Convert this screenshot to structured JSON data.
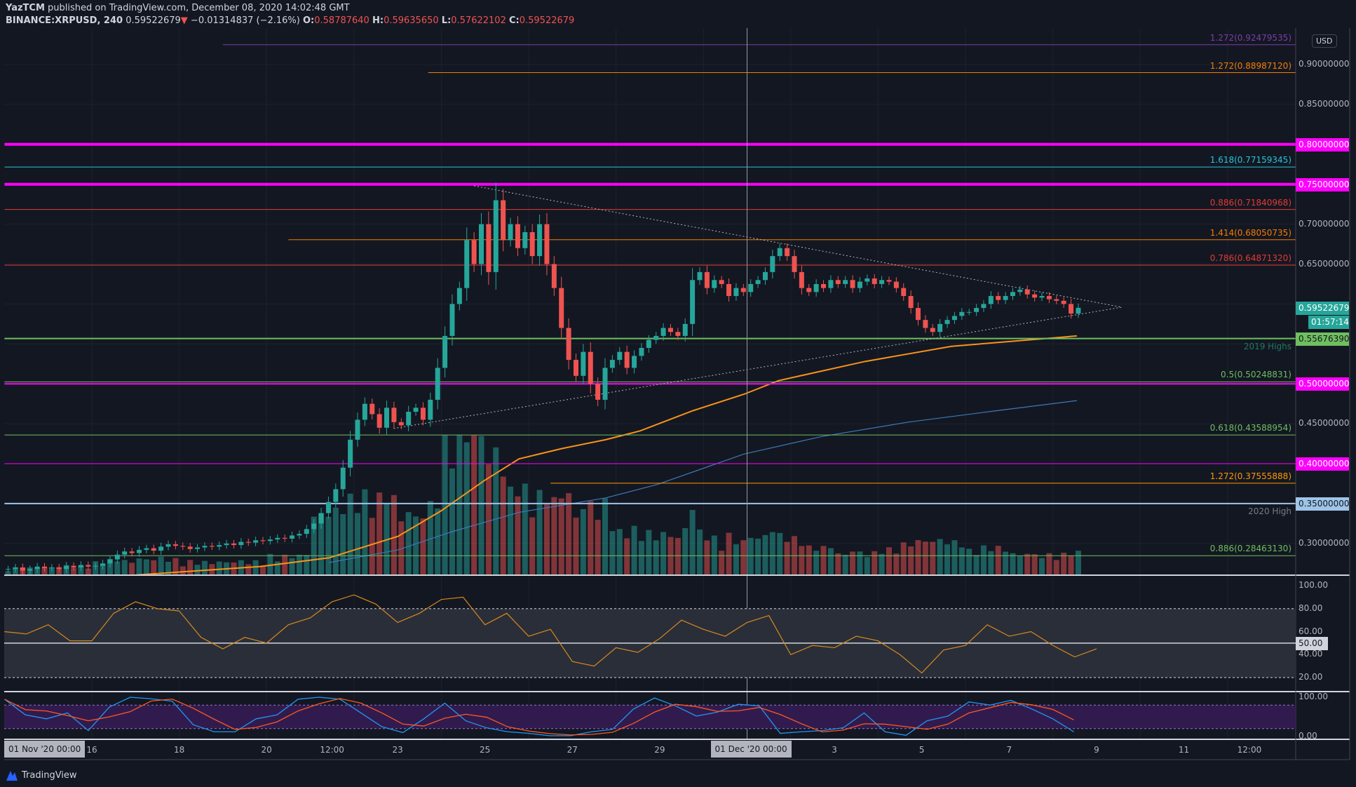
{
  "header": {
    "author": "YazTCM",
    "published": "published on TradingView.com, December 08, 2020 14:02:48 GMT",
    "symbol": "BINANCE:XRPUSD, 240",
    "last": "0.59522679",
    "change": "−0.01314837 (−2.16%)",
    "o_label": "O:",
    "o": "0.58787640",
    "h_label": "H:",
    "h": "0.59635650",
    "l_label": "L:",
    "l": "0.57622102",
    "c_label": "C:",
    "c": "0.59522679"
  },
  "currency": "USD",
  "colors": {
    "up": "#26a69a",
    "down": "#ef5350",
    "magenta": "#ff00ff",
    "background": "#131722"
  },
  "price_axis": {
    "ticks": [
      "0.90000000",
      "0.85000000",
      "0.70000000",
      "0.65000000",
      "0.45000000",
      "0.30000000"
    ],
    "tick_values": [
      0.9,
      0.85,
      0.7,
      0.65,
      0.45,
      0.3
    ],
    "boxes": [
      {
        "value": 0.8,
        "text": "0.80000000",
        "bg": "#ff00ff",
        "fg": "#ffffff"
      },
      {
        "value": 0.75,
        "text": "0.75000000",
        "bg": "#ff00ff",
        "fg": "#ffffff"
      },
      {
        "value": 0.59522679,
        "text": "0.59522679",
        "bg": "#26a69a",
        "fg": "#ffffff"
      },
      {
        "value": 0.5567639,
        "text": "0.55676390",
        "bg": "#6fbf5f",
        "fg": "#131722"
      },
      {
        "value": 0.5,
        "text": "0.50000000",
        "bg": "#ff00ff",
        "fg": "#ffffff"
      },
      {
        "value": 0.4,
        "text": "0.40000000",
        "bg": "#ff00ff",
        "fg": "#ffffff"
      },
      {
        "value": 0.35,
        "text": "0.35000000",
        "bg": "#9ec5e8",
        "fg": "#131722"
      }
    ],
    "countdown": "01:57:14"
  },
  "levels": [
    {
      "value": 0.92479535,
      "label": "1.272(0.92479535)",
      "color": "#7b3fa8",
      "from_day": 19.0,
      "width": 1
    },
    {
      "value": 0.8898712,
      "label": "1.272(0.88987120)",
      "color": "#f57c00",
      "from_day": 23.7,
      "width": 1
    },
    {
      "value": 0.8,
      "label": "",
      "color": "#ff00ff",
      "from_day": 14,
      "width": 4
    },
    {
      "value": 0.77159345,
      "label": "1.618(0.77159345)",
      "color": "#26c6da",
      "from_day": 14,
      "width": 1
    },
    {
      "value": 0.75,
      "label": "",
      "color": "#ff00ff",
      "from_day": 14,
      "width": 4
    },
    {
      "value": 0.71840968,
      "label": "0.886(0.71840968)",
      "color": "#e53935",
      "from_day": 14,
      "width": 1
    },
    {
      "value": 0.68050735,
      "label": "1.414(0.68050735)",
      "color": "#f57c00",
      "from_day": 20.5,
      "width": 1
    },
    {
      "value": 0.6487132,
      "label": "0.786(0.64871320)",
      "color": "#e53935",
      "from_day": 14,
      "width": 1
    },
    {
      "value": 0.5567639,
      "label": "2019 Highs",
      "color": "#6fbf5f",
      "label_color": "#1e7a5e",
      "from_day": 14,
      "width": 2
    },
    {
      "value": 0.50248831,
      "label": "0.5(0.50248831)",
      "color": "#6fbf5f",
      "from_day": 14,
      "width": 1
    },
    {
      "value": 0.5,
      "label": "",
      "color": "#ff00ff",
      "from_day": 14,
      "width": 2
    },
    {
      "value": 0.43588954,
      "label": "0.618(0.43588954)",
      "color": "#6fbf5f",
      "from_day": 14,
      "width": 1
    },
    {
      "value": 0.4,
      "label": "",
      "color": "#ff00ff",
      "from_day": 14,
      "width": 1
    },
    {
      "value": 0.37555888,
      "label": "1.272(0.37555888)",
      "color": "#ff9800",
      "from_day": 26.5,
      "width": 1
    },
    {
      "value": 0.35,
      "label": "2020 High",
      "color": "#9ec5e8",
      "label_color": "#787b86",
      "from_day": 14,
      "width": 2
    },
    {
      "value": 0.2846313,
      "label": "0.886(0.28463130)",
      "color": "#6fbf5f",
      "from_day": 14,
      "width": 1
    }
  ],
  "time_axis": {
    "labels": [
      {
        "day": 16,
        "text": "16"
      },
      {
        "day": 18,
        "text": "18"
      },
      {
        "day": 20,
        "text": "20"
      },
      {
        "day": 21.5,
        "text": "12:00"
      },
      {
        "day": 23,
        "text": "23"
      },
      {
        "day": 25,
        "text": "25"
      },
      {
        "day": 27,
        "text": "27"
      },
      {
        "day": 29,
        "text": "29"
      },
      {
        "day": 33,
        "text": "3"
      },
      {
        "day": 35,
        "text": "5"
      },
      {
        "day": 37,
        "text": "7"
      },
      {
        "day": 39,
        "text": "9"
      },
      {
        "day": 41,
        "text": "11"
      },
      {
        "day": 42.5,
        "text": "12:00"
      }
    ],
    "left_box": "01 Nov '20  00:00",
    "crosshair_box": "01 Dec '20  00:00"
  },
  "chart_data": {
    "type": "candlestick",
    "interval": "240",
    "start": "Nov 14 2020",
    "closes": [
      0.268,
      0.27,
      0.266,
      0.268,
      0.271,
      0.269,
      0.27,
      0.268,
      0.272,
      0.27,
      0.273,
      0.271,
      0.272,
      0.275,
      0.28,
      0.286,
      0.29,
      0.288,
      0.292,
      0.294,
      0.291,
      0.296,
      0.299,
      0.297,
      0.296,
      0.293,
      0.295,
      0.297,
      0.296,
      0.298,
      0.3,
      0.298,
      0.302,
      0.301,
      0.304,
      0.303,
      0.305,
      0.307,
      0.306,
      0.31,
      0.312,
      0.318,
      0.325,
      0.338,
      0.352,
      0.368,
      0.395,
      0.43,
      0.455,
      0.475,
      0.462,
      0.445,
      0.47,
      0.452,
      0.448,
      0.465,
      0.47,
      0.455,
      0.48,
      0.52,
      0.56,
      0.6,
      0.62,
      0.68,
      0.65,
      0.7,
      0.64,
      0.73,
      0.68,
      0.7,
      0.67,
      0.69,
      0.66,
      0.7,
      0.65,
      0.62,
      0.57,
      0.53,
      0.51,
      0.54,
      0.5,
      0.48,
      0.52,
      0.53,
      0.54,
      0.52,
      0.535,
      0.545,
      0.555,
      0.56,
      0.57,
      0.565,
      0.56,
      0.575,
      0.63,
      0.64,
      0.62,
      0.63,
      0.625,
      0.61,
      0.62,
      0.615,
      0.625,
      0.63,
      0.64,
      0.66,
      0.67,
      0.66,
      0.64,
      0.62,
      0.615,
      0.625,
      0.62,
      0.63,
      0.625,
      0.63,
      0.62,
      0.628,
      0.632,
      0.625,
      0.63,
      0.628,
      0.62,
      0.61,
      0.595,
      0.58,
      0.57,
      0.565,
      0.575,
      0.58,
      0.585,
      0.59,
      0.59,
      0.595,
      0.6,
      0.61,
      0.605,
      0.61,
      0.615,
      0.618,
      0.612,
      0.608,
      0.61,
      0.606,
      0.604,
      0.6,
      0.588,
      0.59522679
    ],
    "daily_volume_relative": [
      0.05,
      0.06,
      0.1,
      0.12,
      0.1,
      0.1,
      0.15,
      0.45,
      0.55,
      0.45,
      1.0,
      0.6,
      0.45,
      0.4,
      0.3,
      0.3,
      0.25,
      0.28,
      0.2,
      0.15,
      0.2,
      0.25,
      0.2,
      0.15,
      0.15
    ],
    "ma_orange": [
      [
        16.87,
        0.26
      ],
      [
        19.84,
        0.271
      ],
      [
        21.43,
        0.282
      ],
      [
        23.01,
        0.309
      ],
      [
        24.0,
        0.341
      ],
      [
        24.99,
        0.379
      ],
      [
        25.78,
        0.406
      ],
      [
        26.77,
        0.419
      ],
      [
        27.76,
        0.43
      ],
      [
        28.55,
        0.441
      ],
      [
        29.74,
        0.466
      ],
      [
        30.93,
        0.487
      ],
      [
        31.72,
        0.504
      ],
      [
        33.7,
        0.528
      ],
      [
        35.68,
        0.547
      ],
      [
        38.55,
        0.56
      ]
    ],
    "ma_blue": [
      [
        21.43,
        0.276
      ],
      [
        23.01,
        0.292
      ],
      [
        24.2,
        0.314
      ],
      [
        25.78,
        0.339
      ],
      [
        27.76,
        0.357
      ],
      [
        28.95,
        0.374
      ],
      [
        30.93,
        0.412
      ],
      [
        32.71,
        0.434
      ],
      [
        34.69,
        0.452
      ],
      [
        36.67,
        0.466
      ],
      [
        38.55,
        0.479
      ]
    ],
    "trendlines": [
      {
        "from": [
          24.75,
          0.748
        ],
        "to": [
          39.58,
          0.596
        ]
      },
      {
        "from": [
          22.91,
          0.444
        ],
        "to": [
          39.58,
          0.596
        ]
      }
    ],
    "crosshair_day": 31,
    "rsi": {
      "values": [
        60,
        58,
        66,
        52,
        52,
        76,
        86,
        80,
        78,
        55,
        45,
        55,
        50,
        66,
        72,
        86,
        92,
        84,
        68,
        76,
        88,
        90,
        66,
        76,
        56,
        62,
        34,
        30,
        46,
        42,
        54,
        70,
        62,
        56,
        68,
        74,
        40,
        48,
        46,
        56,
        52,
        40,
        24,
        44,
        48,
        66,
        56,
        60,
        48,
        38,
        45
      ],
      "levels": [
        80,
        50,
        20
      ],
      "ticks": [
        "100.00",
        "80.00",
        "60.00",
        "50.00",
        "40.00",
        "20.00"
      ],
      "tick_values": [
        100,
        80,
        60,
        50,
        40,
        20
      ],
      "current": "50.00"
    },
    "stoch": {
      "k": [
        95,
        55,
        45,
        60,
        15,
        75,
        100,
        96,
        90,
        30,
        12,
        12,
        45,
        55,
        95,
        100,
        95,
        60,
        25,
        10,
        45,
        85,
        40,
        22,
        12,
        8,
        2,
        2,
        12,
        18,
        70,
        98,
        78,
        52,
        62,
        82,
        78,
        8,
        12,
        15,
        22,
        60,
        12,
        3,
        40,
        52,
        88,
        80,
        92,
        70,
        45,
        12
      ],
      "levels": [
        80,
        20
      ],
      "ticks": [
        "100.00",
        "0.00"
      ],
      "tick_values": [
        100,
        0
      ]
    }
  },
  "footer": {
    "brand": "TradingView"
  }
}
